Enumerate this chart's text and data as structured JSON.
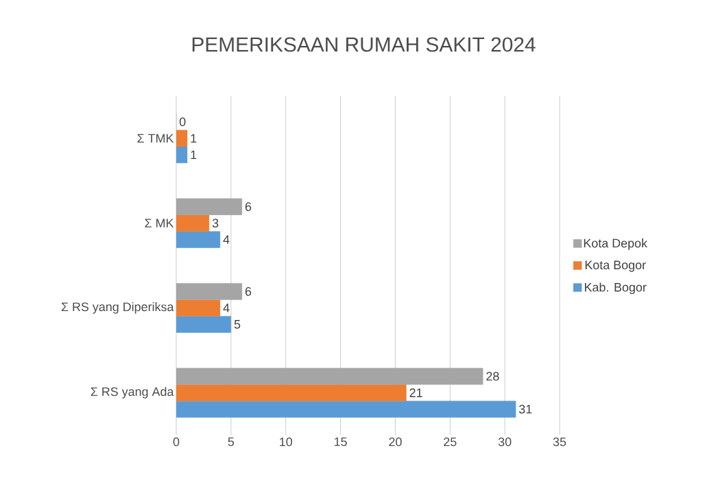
{
  "chart_data": {
    "type": "bar",
    "orientation": "horizontal",
    "title": "PEMERIKSAAN RUMAH SAKIT 2024",
    "categories": [
      "Σ TMK",
      "Σ MK",
      "Σ RS yang Diperiksa",
      "Σ RS yang Ada"
    ],
    "series": [
      {
        "name": "Kab. Bogor",
        "color": "#5b9bd5",
        "values": [
          1,
          4,
          5,
          31
        ]
      },
      {
        "name": "Kota Bogor",
        "color": "#ed7d31",
        "values": [
          1,
          3,
          4,
          21
        ]
      },
      {
        "name": "Kota Depok",
        "color": "#a5a5a5",
        "values": [
          0,
          6,
          6,
          28
        ]
      }
    ],
    "xlim": [
      0,
      35
    ],
    "xticks": [
      0,
      5,
      10,
      15,
      20,
      25,
      30,
      35
    ],
    "grid": "x",
    "legend": "right",
    "data_labels": true
  }
}
